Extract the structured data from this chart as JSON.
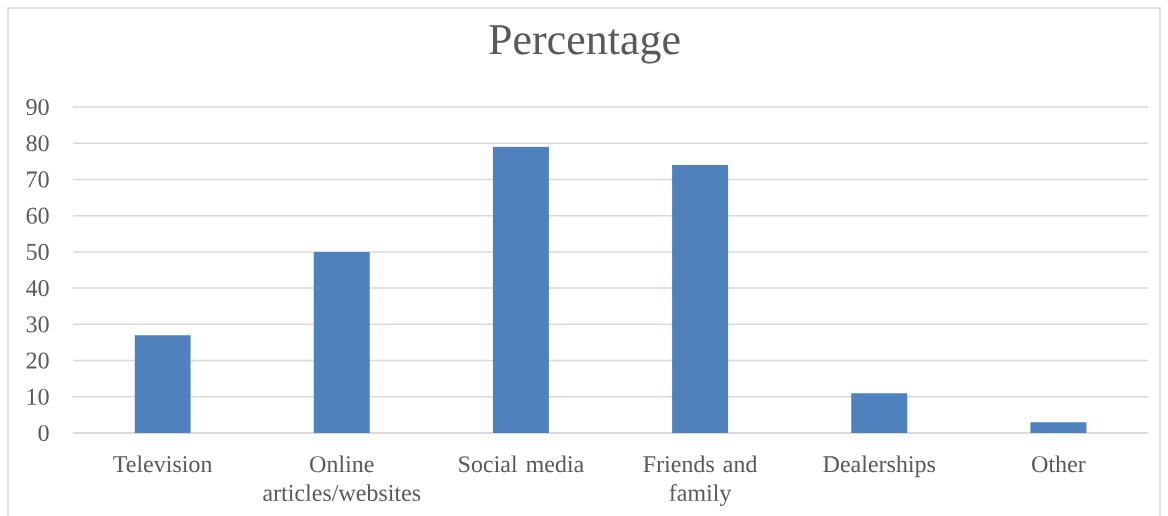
{
  "chart_data": {
    "type": "bar",
    "title": "Percentage",
    "categories": [
      "Television",
      "Online articles/websites",
      "Social media",
      "Friends and family",
      "Dealerships",
      "Other"
    ],
    "values": [
      27,
      50,
      79,
      74,
      11,
      3
    ],
    "color": "#4f81bd",
    "ylim": [
      0,
      90
    ],
    "yticks": [
      0,
      10,
      20,
      30,
      40,
      50,
      60,
      70,
      80,
      90
    ],
    "grid": "y"
  }
}
